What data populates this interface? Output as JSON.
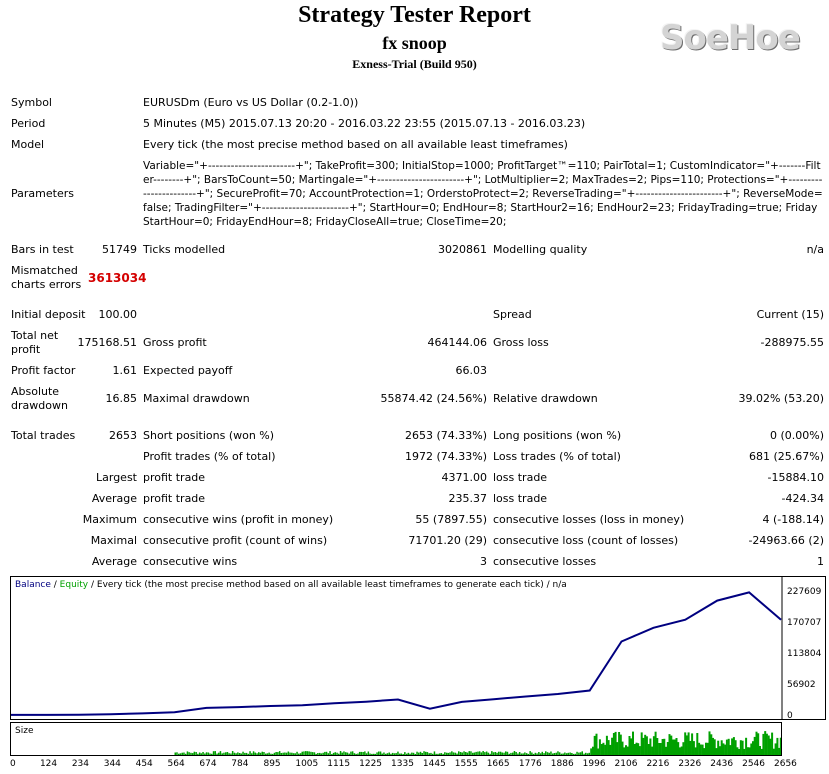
{
  "header": {
    "title": "Strategy Tester Report",
    "ea_name": "fx snoop",
    "server": "Exness-Trial (Build 950)",
    "logo": "SoeHoe"
  },
  "info": {
    "symbol_label": "Symbol",
    "symbol_value": "EURUSDm (Euro vs US Dollar (0.2-1.0))",
    "period_label": "Period",
    "period_value": "5 Minutes (M5) 2015.07.13 20:20 - 2016.03.22 23:55 (2015.07.13 - 2016.03.23)",
    "model_label": "Model",
    "model_value": "Every tick (the most precise method based on all available least timeframes)",
    "parameters_label": "Parameters",
    "parameters_value": "Variable=\"+-----------------------+\"; TakeProfit=300; InitialStop=1000; ProfitTarget™=110; PairTotal=1; CustomIndicator=\"+-------Filter--------+\"; BarsToCount=50; Martingale=\"+-----------------------+\"; LotMultiplier=2; MaxTrades=2; Pips=110; Protections=\"+-----------------------+\"; SecureProfit=70; AccountProtection=1; OrderstoProtect=2; ReverseTrading=\"+-----------------------+\"; ReverseMode=false; TradingFilter=\"+-----------------------+\"; StartHour=0; EndHour=8; StartHour2=16; EndHour2=23; FridayTrading=true; FridayStartHour=0; FridayEndHour=8; FridayCloseAll=true; CloseTime=20;"
  },
  "stats": {
    "bars_label": "Bars in test",
    "bars_value": "51749",
    "ticks_label": "Ticks modelled",
    "ticks_value": "3020861",
    "quality_label": "Modelling quality",
    "quality_value": "n/a",
    "mismatch_label": "Mismatched charts errors",
    "mismatch_value": "3613034",
    "deposit_label": "Initial deposit",
    "deposit_value": "100.00",
    "spread_label": "Spread",
    "spread_value": "Current (15)",
    "net_label": "Total net profit",
    "net_value": "175168.51",
    "gross_profit_label": "Gross profit",
    "gross_profit_value": "464144.06",
    "gross_loss_label": "Gross loss",
    "gross_loss_value": "-288975.55",
    "pf_label": "Profit factor",
    "pf_value": "1.61",
    "ep_label": "Expected payoff",
    "ep_value": "66.03",
    "abs_dd_label": "Absolute drawdown",
    "abs_dd_value": "16.85",
    "max_dd_label": "Maximal drawdown",
    "max_dd_value": "55874.42 (24.56%)",
    "rel_dd_label": "Relative drawdown",
    "rel_dd_value": "39.02% (53.20)",
    "total_trades_label": "Total trades",
    "total_trades_value": "2653",
    "short_label": "Short positions (won %)",
    "short_value": "2653 (74.33%)",
    "long_label": "Long positions (won %)",
    "long_value": "0 (0.00%)",
    "profit_trades_label": "Profit trades (% of total)",
    "profit_trades_value": "1972 (74.33%)",
    "loss_trades_label": "Loss trades (% of total)",
    "loss_trades_value": "681 (25.67%)",
    "largest_label": "Largest",
    "largest_profit_label": "profit trade",
    "largest_profit_value": "4371.00",
    "largest_loss_label": "loss trade",
    "largest_loss_value": "-15884.10",
    "average_label": "Average",
    "average_profit_label": "profit trade",
    "average_profit_value": "235.37",
    "average_loss_label": "loss trade",
    "average_loss_value": "-424.34",
    "maximum_label": "Maximum",
    "max_cons_wins_label": "consecutive wins (profit in money)",
    "max_cons_wins_value": "55 (7897.55)",
    "max_cons_losses_label": "consecutive losses (loss in money)",
    "max_cons_losses_value": "4 (-188.14)",
    "maximal_label": "Maximal",
    "maximal_cons_profit_label": "consecutive profit (count of wins)",
    "maximal_cons_profit_value": "71701.20 (29)",
    "maximal_cons_loss_label": "consecutive loss (count of losses)",
    "maximal_cons_loss_value": "-24963.66 (2)",
    "avg_label": "Average",
    "avg_cons_wins_label": "consecutive wins",
    "avg_cons_wins_value": "3",
    "avg_cons_losses_label": "consecutive losses",
    "avg_cons_losses_value": "1"
  },
  "chart_legend": {
    "balance": "Balance",
    "sep1": " / ",
    "equity": "Equity",
    "rest": " / Every tick (the most precise method based on all available least timeframes to generate each tick) / n/a"
  },
  "size_label": "Size",
  "colors": {
    "balance": "#000080",
    "equity": "#00a000",
    "size_bars": "#00a000",
    "red": "#d40000"
  },
  "chart_data": {
    "type": "line",
    "series": [
      {
        "name": "Balance",
        "x": [
          0,
          124,
          234,
          344,
          454,
          564,
          674,
          784,
          895,
          1005,
          1115,
          1225,
          1335,
          1445,
          1555,
          1665,
          1776,
          1886,
          1996,
          2106,
          2216,
          2326,
          2436,
          2546,
          2656
        ],
        "values": [
          100,
          100,
          600,
          1500,
          3000,
          5000,
          13000,
          14500,
          16500,
          18000,
          21500,
          24500,
          28500,
          11500,
          24000,
          29000,
          34000,
          38500,
          45000,
          135000,
          160000,
          175000,
          210000,
          225000,
          175000
        ]
      }
    ],
    "x_ticks": [
      "0",
      "124",
      "234",
      "344",
      "454",
      "564",
      "674",
      "784",
      "895",
      "1005",
      "1115",
      "1225",
      "1335",
      "1445",
      "1555",
      "1665",
      "1776",
      "1886",
      "1996",
      "2106",
      "2216",
      "2326",
      "2436",
      "2546",
      "2656"
    ],
    "y_ticks": [
      "227609",
      "170707",
      "113804",
      "56902",
      "0"
    ],
    "ylim": [
      0,
      227609
    ],
    "xlim": [
      0,
      2656
    ],
    "size_bars": {
      "start_trade": 564,
      "dense_from": 1996,
      "end_trade": 2656
    }
  }
}
